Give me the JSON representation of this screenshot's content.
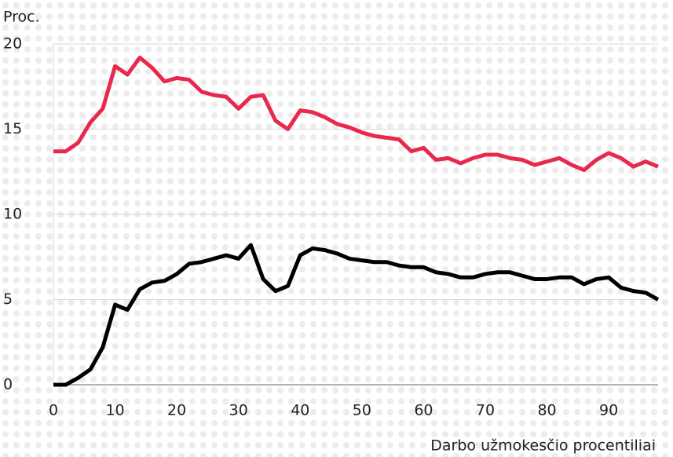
{
  "chart_data": {
    "type": "line",
    "y_label": "Proc.",
    "x_label": "Darbo užmokesčio procentiliai",
    "x": [
      0,
      2,
      4,
      6,
      8,
      10,
      12,
      14,
      16,
      18,
      20,
      22,
      24,
      26,
      28,
      30,
      32,
      34,
      36,
      38,
      40,
      42,
      44,
      46,
      48,
      50,
      52,
      54,
      56,
      58,
      60,
      62,
      64,
      66,
      68,
      70,
      72,
      74,
      76,
      78,
      80,
      82,
      84,
      86,
      88,
      90,
      92,
      94,
      96,
      98
    ],
    "series": [
      {
        "color": "#e8294e",
        "values": [
          13.7,
          13.7,
          14.2,
          15.4,
          16.2,
          18.7,
          18.2,
          19.2,
          18.6,
          17.8,
          18.0,
          17.9,
          17.2,
          17.0,
          16.9,
          16.2,
          16.9,
          17.0,
          15.5,
          15.0,
          16.1,
          16.0,
          15.7,
          15.3,
          15.1,
          14.8,
          14.6,
          14.5,
          14.4,
          13.7,
          13.9,
          13.2,
          13.3,
          13.0,
          13.3,
          13.5,
          13.5,
          13.3,
          13.2,
          12.9,
          13.1,
          13.3,
          12.9,
          12.6,
          13.2,
          13.6,
          13.3,
          12.8,
          13.1,
          12.8
        ]
      },
      {
        "color": "#000000",
        "values": [
          0,
          0,
          0.4,
          0.9,
          2.2,
          4.7,
          4.4,
          5.6,
          6.0,
          6.1,
          6.5,
          7.1,
          7.2,
          7.4,
          7.6,
          7.4,
          8.2,
          6.2,
          5.5,
          5.8,
          7.6,
          8.0,
          7.9,
          7.7,
          7.4,
          7.3,
          7.2,
          7.2,
          7.0,
          6.9,
          6.9,
          6.6,
          6.5,
          6.3,
          6.3,
          6.5,
          6.6,
          6.6,
          6.4,
          6.2,
          6.2,
          6.3,
          6.3,
          5.9,
          6.2,
          6.3,
          5.7,
          5.5,
          5.4,
          5.0
        ]
      }
    ],
    "xlim": [
      0,
      98
    ],
    "ylim": [
      0,
      20
    ],
    "xticks": [
      0,
      10,
      20,
      30,
      40,
      50,
      60,
      70,
      80,
      90
    ],
    "yticks": [
      0,
      5,
      10,
      15,
      20
    ],
    "grid": true
  }
}
